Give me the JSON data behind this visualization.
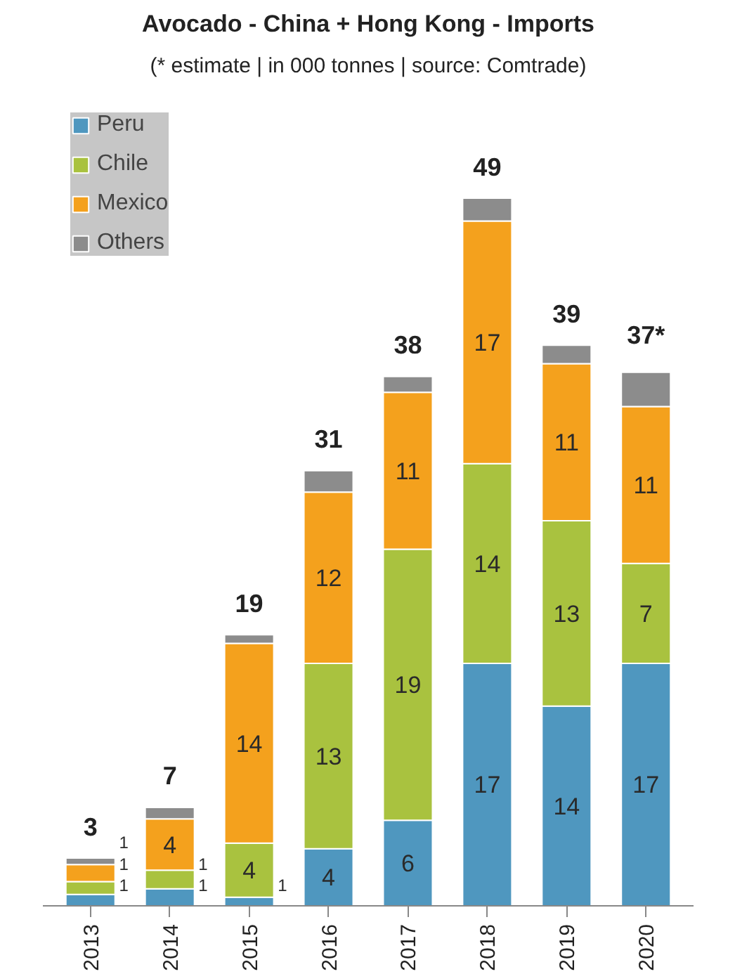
{
  "chart_data": {
    "type": "bar",
    "title": "Avocado - China + Hong Kong - Imports",
    "subtitle": "(* estimate | in 000 tonnes | source: Comtrade)",
    "categories": [
      "2013",
      "2014",
      "2015",
      "2016",
      "2017",
      "2018",
      "2019",
      "2020"
    ],
    "stacked": true,
    "tick_labels": "x",
    "grid": false,
    "legend": "top left",
    "series": [
      {
        "name": "Peru",
        "color": "#4f97bf",
        "values": [
          0.8,
          1.2,
          0.6,
          4,
          6,
          17,
          14,
          17
        ],
        "value_labels": [
          "1",
          "1",
          "1",
          "4",
          "6",
          "17",
          "14",
          "17"
        ]
      },
      {
        "name": "Chile",
        "color": "#a9c23f",
        "values": [
          0.9,
          1.3,
          3.8,
          13,
          19,
          14,
          13,
          7
        ],
        "value_labels": [
          "1",
          "1",
          "4",
          "13",
          "19",
          "14",
          "13",
          "7"
        ]
      },
      {
        "name": "Mexico",
        "color": "#f4a11d",
        "values": [
          1.2,
          3.6,
          14,
          12,
          11,
          17,
          11,
          11
        ],
        "value_labels": [
          "1",
          "4",
          "14",
          "12",
          "11",
          "17",
          "11",
          "11"
        ]
      },
      {
        "name": "Others",
        "color": "#8c8c8c",
        "values": [
          0.45,
          0.8,
          0.6,
          1.5,
          1.1,
          1.6,
          1.3,
          2.4
        ],
        "value_labels": [
          null,
          null,
          null,
          null,
          null,
          null,
          null,
          null
        ]
      }
    ],
    "totals": [
      "3",
      "7",
      "19",
      "31",
      "38",
      "49",
      "39",
      "37*"
    ]
  }
}
